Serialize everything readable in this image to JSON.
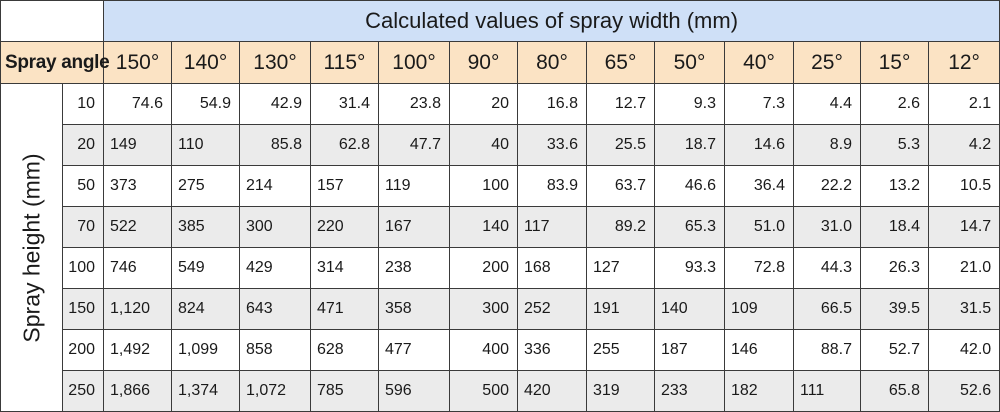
{
  "title": "Calculated values of spray width (mm)",
  "angle_label": "Spray angle",
  "height_label": "Spray height (mm)",
  "angles": [
    "150°",
    "140°",
    "130°",
    "115°",
    "100°",
    "90°",
    "80°",
    "65°",
    "50°",
    "40°",
    "25°",
    "15°",
    "12°"
  ],
  "rows": [
    {
      "height": "10",
      "values": [
        "74.6",
        "54.9",
        "42.9",
        "31.4",
        "23.8",
        "20",
        "16.8",
        "12.7",
        "9.3",
        "7.3",
        "4.4",
        "2.6",
        "2.1"
      ]
    },
    {
      "height": "20",
      "values": [
        "149",
        "110",
        "85.8",
        "62.8",
        "47.7",
        "40",
        "33.6",
        "25.5",
        "18.7",
        "14.6",
        "8.9",
        "5.3",
        "4.2"
      ]
    },
    {
      "height": "50",
      "values": [
        "373",
        "275",
        "214",
        "157",
        "119",
        "100",
        "83.9",
        "63.7",
        "46.6",
        "36.4",
        "22.2",
        "13.2",
        "10.5"
      ]
    },
    {
      "height": "70",
      "values": [
        "522",
        "385",
        "300",
        "220",
        "167",
        "140",
        "117",
        "89.2",
        "65.3",
        "51.0",
        "31.0",
        "18.4",
        "14.7"
      ]
    },
    {
      "height": "100",
      "values": [
        "746",
        "549",
        "429",
        "314",
        "238",
        "200",
        "168",
        "127",
        "93.3",
        "72.8",
        "44.3",
        "26.3",
        "21.0"
      ]
    },
    {
      "height": "150",
      "values": [
        "1,120",
        "824",
        "643",
        "471",
        "358",
        "300",
        "252",
        "191",
        "140",
        "109",
        "66.5",
        "39.5",
        "31.5"
      ]
    },
    {
      "height": "200",
      "values": [
        "1,492",
        "1,099",
        "858",
        "628",
        "477",
        "400",
        "336",
        "255",
        "187",
        "146",
        "88.7",
        "52.7",
        "42.0"
      ]
    },
    {
      "height": "250",
      "values": [
        "1,866",
        "1,374",
        "1,072",
        "785",
        "596",
        "500",
        "420",
        "319",
        "233",
        "182",
        "111",
        "65.8",
        "52.6"
      ]
    }
  ],
  "align": [
    [
      "r",
      "r",
      "r",
      "r",
      "r",
      "r",
      "r",
      "r",
      "r",
      "r",
      "r",
      "r",
      "r"
    ],
    [
      "l",
      "l",
      "r",
      "r",
      "r",
      "r",
      "r",
      "r",
      "r",
      "r",
      "r",
      "r",
      "r"
    ],
    [
      "l",
      "l",
      "l",
      "l",
      "l",
      "r",
      "r",
      "r",
      "r",
      "r",
      "r",
      "r",
      "r"
    ],
    [
      "l",
      "l",
      "l",
      "l",
      "l",
      "r",
      "l",
      "r",
      "r",
      "r",
      "r",
      "r",
      "r"
    ],
    [
      "l",
      "l",
      "l",
      "l",
      "l",
      "r",
      "l",
      "l",
      "r",
      "r",
      "r",
      "r",
      "r"
    ],
    [
      "l",
      "l",
      "l",
      "l",
      "l",
      "r",
      "l",
      "l",
      "l",
      "l",
      "r",
      "r",
      "r"
    ],
    [
      "l",
      "l",
      "l",
      "l",
      "l",
      "r",
      "l",
      "l",
      "l",
      "l",
      "r",
      "r",
      "r"
    ],
    [
      "l",
      "l",
      "l",
      "l",
      "l",
      "r",
      "l",
      "l",
      "l",
      "l",
      "l",
      "r",
      "r"
    ]
  ]
}
